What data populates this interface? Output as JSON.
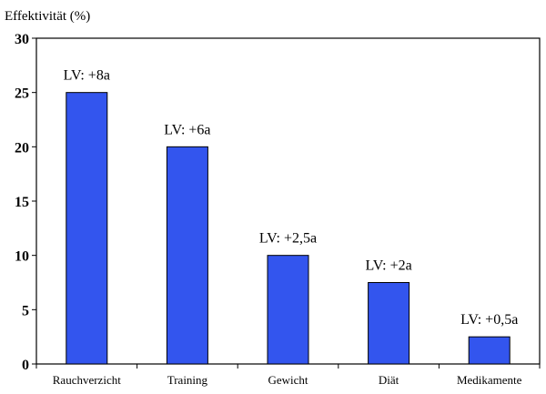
{
  "chart_data": {
    "type": "bar",
    "ylabel": "Effektivität (%)",
    "xlabel": "",
    "ylim": [
      0,
      30
    ],
    "yticks": [
      0,
      5,
      10,
      15,
      20,
      25,
      30
    ],
    "grid": false,
    "categories": [
      "Rauchverzicht",
      "Training",
      "Gewicht",
      "Diät",
      "Medikamente"
    ],
    "values": [
      25,
      20,
      10,
      7.5,
      2.5
    ],
    "data_labels": [
      "LV: +8a",
      "LV: +6a",
      "LV: +2,5a",
      "LV: +2a",
      "LV: +0,5a"
    ],
    "bar_color": "#3355ee",
    "bar_edge_color": "#000000"
  }
}
